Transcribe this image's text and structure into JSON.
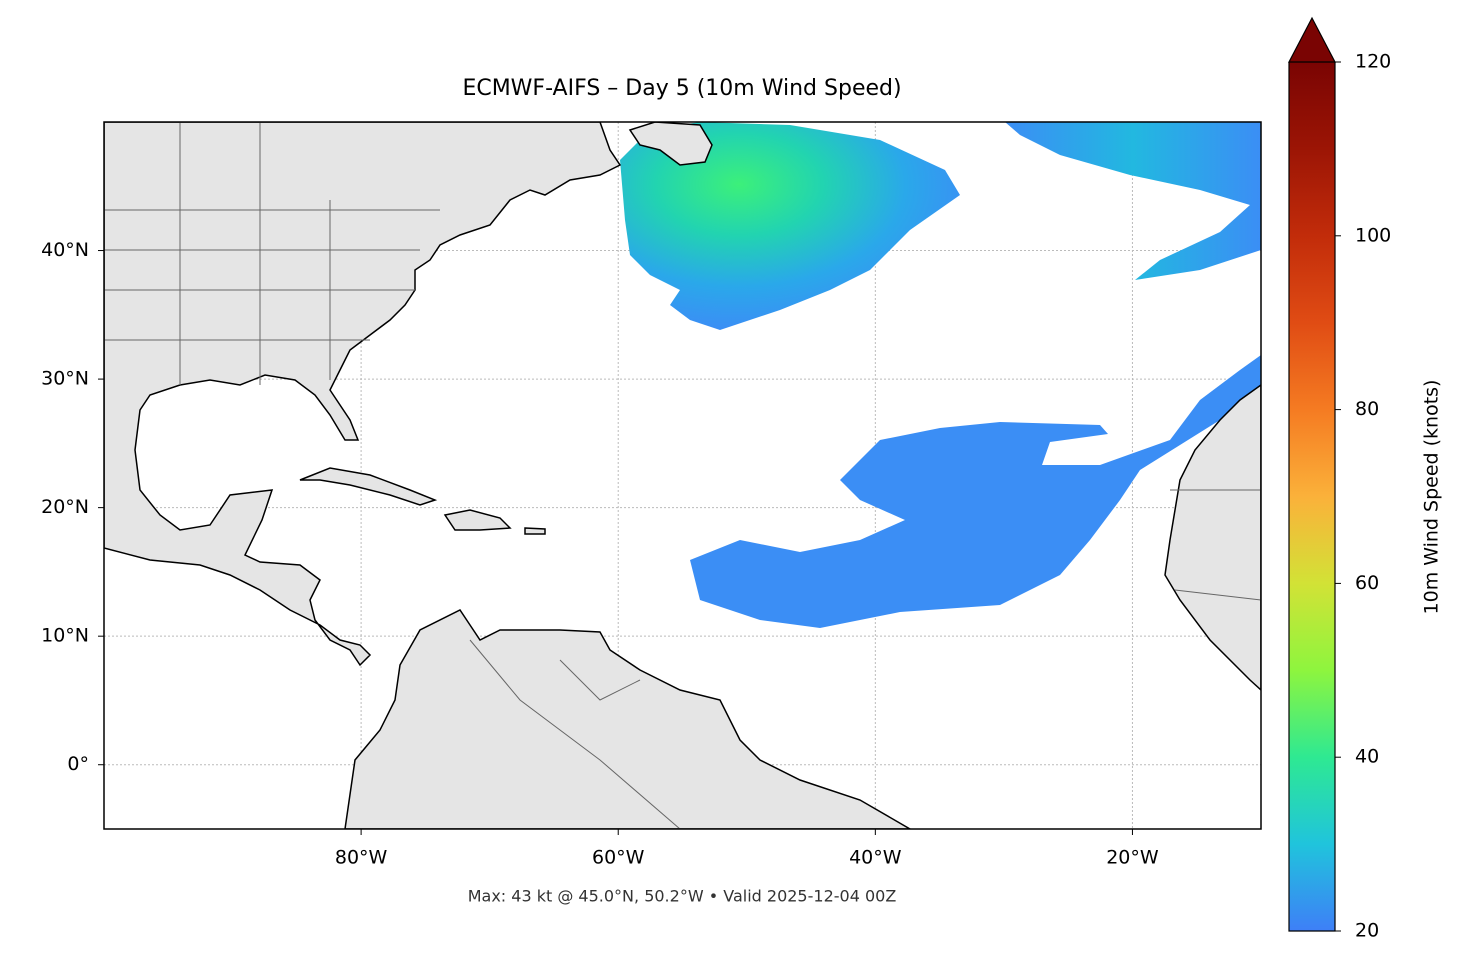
{
  "chart_data": {
    "type": "map",
    "title": "ECMWF-AIFS – Day 5 (10m Wind Speed)",
    "footer": "Max: 43 kt @ 45.0°N, 50.2°W • Valid 2025-12-04 00Z",
    "xlim": [
      -100,
      -10
    ],
    "ylim": [
      -5,
      50
    ],
    "xticks": [
      {
        "value": -80,
        "label": "80°W"
      },
      {
        "value": -60,
        "label": "60°W"
      },
      {
        "value": -40,
        "label": "40°W"
      },
      {
        "value": -20,
        "label": "20°W"
      }
    ],
    "yticks": [
      {
        "value": 0,
        "label": "0°"
      },
      {
        "value": 10,
        "label": "10°N"
      },
      {
        "value": 20,
        "label": "20°N"
      },
      {
        "value": 30,
        "label": "30°N"
      },
      {
        "value": 40,
        "label": "40°N"
      }
    ],
    "grid": true,
    "colorbar": {
      "label": "10m Wind Speed (knots)",
      "lim": [
        20,
        120
      ],
      "ticks": [
        20,
        40,
        60,
        80,
        100,
        120
      ]
    }
  }
}
